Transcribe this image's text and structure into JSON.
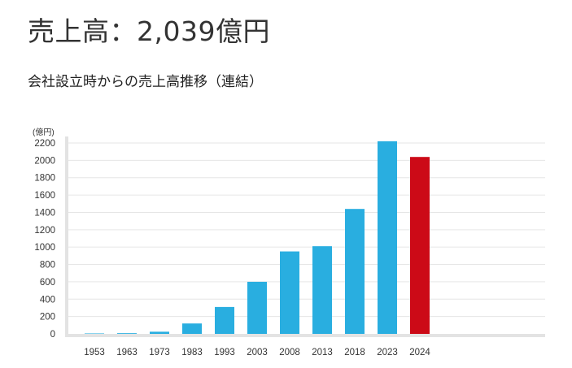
{
  "header": {
    "headline": "売上高：2,039億円",
    "subtitle": "会社設立時からの売上高推移（連結）"
  },
  "colors": {
    "bar": "#29aee0",
    "highlight": "#cc0a17",
    "grid": "#e6e6e6",
    "axis": "#e3e3e3",
    "text": "#333333"
  },
  "chart_data": {
    "type": "bar",
    "title": "会社設立時からの売上高推移（連結）",
    "ylabel": "(億円)",
    "xlabel": "",
    "ylim": [
      0,
      2200
    ],
    "yticks": [
      0,
      200,
      400,
      600,
      800,
      1000,
      1200,
      1400,
      1600,
      1800,
      2000,
      2200
    ],
    "categories": [
      "1953",
      "1963",
      "1973",
      "1983",
      "1993",
      "2003",
      "2008",
      "2013",
      "2018",
      "2023",
      "2024"
    ],
    "values": [
      5,
      8,
      25,
      120,
      310,
      600,
      950,
      1010,
      1440,
      2220,
      2039
    ],
    "highlight_category": "2024",
    "grid": true
  }
}
